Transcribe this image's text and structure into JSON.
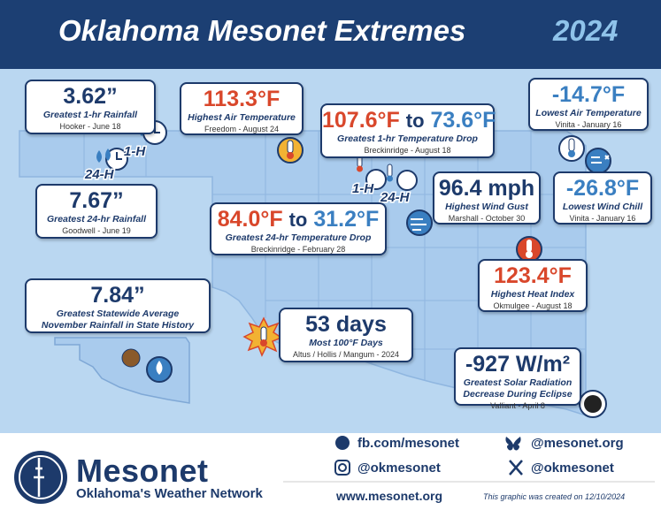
{
  "header": {
    "title": "Oklahoma Mesonet Extremes",
    "year": "2024"
  },
  "extremes": [
    {
      "value": "3.62”",
      "label": "Greatest 1-hr Rainfall",
      "location": "Hooker - June 18"
    },
    {
      "value": "7.67”",
      "label": "Greatest 24-hr Rainfall",
      "location": "Goodwell - June 19"
    },
    {
      "value": "113.3°F",
      "label": "Highest Air Temperature",
      "location": "Freedom - August 24"
    },
    {
      "value_from": "107.6°F",
      "value_connector": "to",
      "value_to": "73.6°F",
      "label": "Greatest 1-hr Temperature Drop",
      "location": "Breckinridge - August 18"
    },
    {
      "value_from": "84.0°F",
      "value_connector": "to",
      "value_to": "31.2°F",
      "label": "Greatest 24-hr Temperature Drop",
      "location": "Breckinridge - February 28"
    },
    {
      "value": "96.4 mph",
      "label": "Highest Wind Gust",
      "location": "Marshall - October 30"
    },
    {
      "value": "-14.7°F",
      "label": "Lowest Air Temperature",
      "location": "Vinita - January 16"
    },
    {
      "value": "-26.8°F",
      "label": "Lowest Wind Chill",
      "location": "Vinita - January 16"
    },
    {
      "value": "123.4°F",
      "label": "Highest Heat Index",
      "location": "Okmulgee - August 18"
    },
    {
      "value": "7.84”",
      "label_lines": [
        "Greatest Statewide Average",
        "November Rainfall in State History"
      ]
    },
    {
      "value": "53 days",
      "label": "Most 100°F Days",
      "location": "Altus / Hollis / Mangum - 2024"
    },
    {
      "value": "-927 W/m²",
      "label_lines": [
        "Greatest Solar Radiation",
        "Decrease During Eclipse"
      ],
      "location": "Valliant - April 8"
    }
  ],
  "icon_labels": {
    "one_hour": "1-H",
    "twenty_four_hour": "24-H"
  },
  "footer": {
    "logo_name": "Mesonet",
    "logo_tagline": "Oklahoma's Weather Network",
    "facebook": "fb.com/mesonet",
    "bluesky": "@mesonet.org",
    "instagram": "@okmesonet",
    "x": "@okmesonet",
    "website": "www.mesonet.org",
    "created_note": "This graphic was created on 12/10/2024"
  }
}
